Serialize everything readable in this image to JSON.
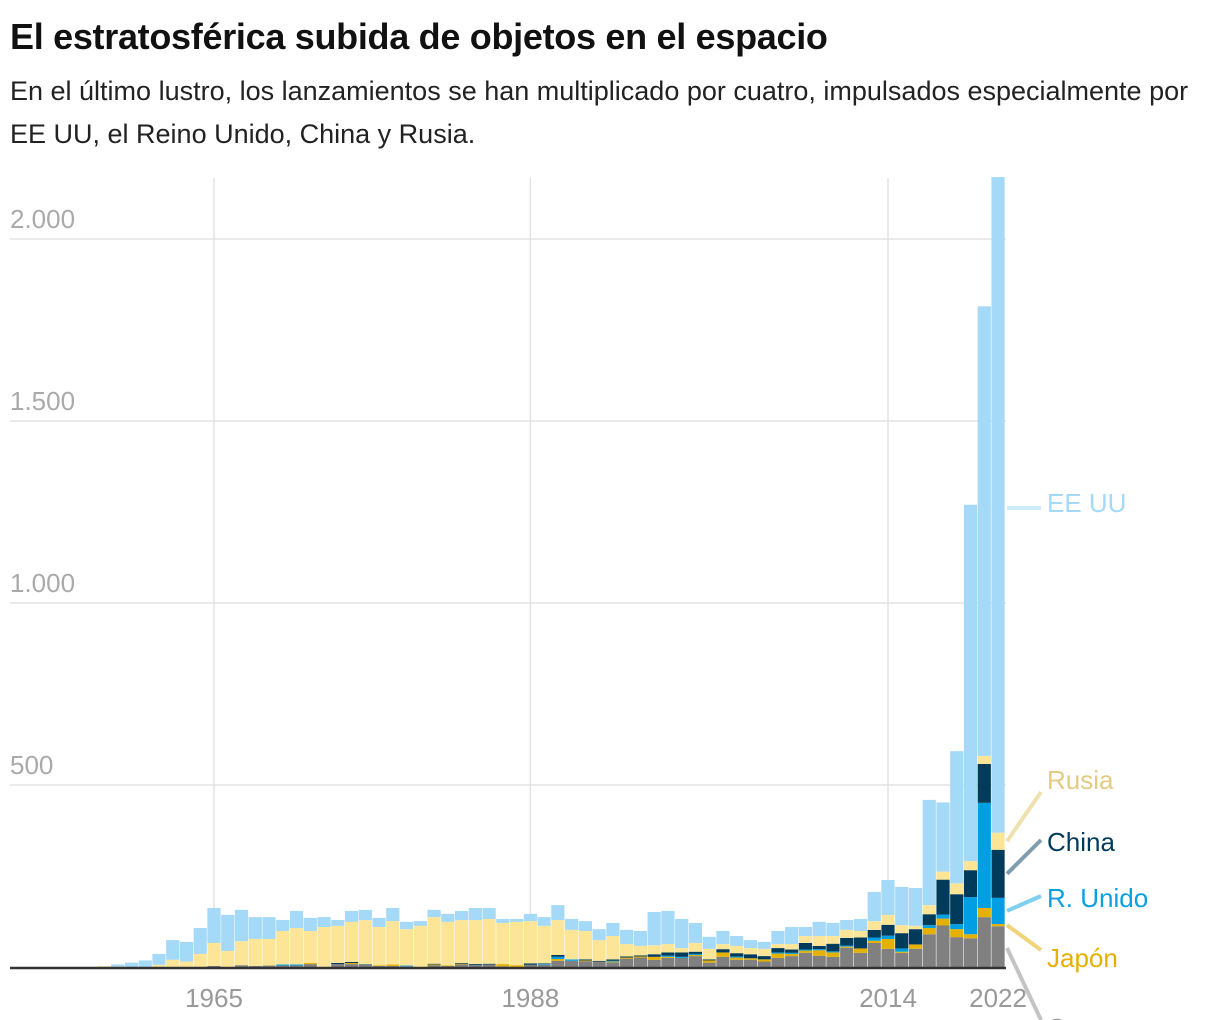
{
  "header": {
    "title": "El estratosférica subida de objetos en el espacio",
    "subtitle": "En el último lustro, los lanzamientos se han multiplicado por cuatro, impulsados especialmente por EE UU, el Reino Unido, China y Rusia."
  },
  "chart_data": {
    "type": "bar",
    "stacked": true,
    "title": "El estratosférica subida de objetos en el espacio",
    "subtitle": "En el último lustro, los lanzamientos se han multiplicado por cuatro, impulsados especialmente por EE UU, el Reino Unido, China y Rusia.",
    "xlabel": "",
    "ylabel": "",
    "ylim": [
      0,
      2170
    ],
    "xlim": [
      1957,
      2022
    ],
    "grid": true,
    "legend": "right-side labels",
    "x_ticks": [
      1965,
      1988,
      2014,
      2022
    ],
    "x_tick_labels": [
      "1965",
      "1988",
      "2014",
      "2022"
    ],
    "y_ticks": [
      500,
      1000,
      1500,
      2000
    ],
    "y_tick_labels": [
      "500",
      "1.000",
      "1.500",
      "2.000"
    ],
    "x": [
      1957,
      1958,
      1959,
      1960,
      1961,
      1962,
      1963,
      1964,
      1965,
      1966,
      1967,
      1968,
      1969,
      1970,
      1971,
      1972,
      1973,
      1974,
      1975,
      1976,
      1977,
      1978,
      1979,
      1980,
      1981,
      1982,
      1983,
      1984,
      1985,
      1986,
      1987,
      1988,
      1989,
      1990,
      1991,
      1992,
      1993,
      1994,
      1995,
      1996,
      1997,
      1998,
      1999,
      2000,
      2001,
      2002,
      2003,
      2004,
      2005,
      2006,
      2007,
      2008,
      2009,
      2010,
      2011,
      2012,
      2013,
      2014,
      2015,
      2016,
      2017,
      2018,
      2019,
      2020,
      2021,
      2022
    ],
    "series": [
      {
        "name": "Otros",
        "color": "#808080",
        "values": [
          0,
          0,
          0,
          0,
          0,
          0,
          0,
          0,
          3,
          0,
          5,
          3,
          4,
          4,
          4,
          8,
          0,
          8,
          8,
          5,
          3,
          3,
          2,
          0,
          5,
          3,
          7,
          5,
          7,
          2,
          0,
          6,
          6,
          17,
          17,
          16,
          15,
          13,
          23,
          26,
          20,
          25,
          25,
          30,
          12,
          28,
          20,
          20,
          15,
          25,
          30,
          39,
          31,
          28,
          53,
          39,
          66,
          50,
          39,
          50,
          90,
          114,
          82,
          79,
          137,
          112
        ]
      },
      {
        "name": "Japón",
        "color": "#e5b000",
        "values": [
          0,
          0,
          0,
          0,
          0,
          0,
          0,
          0,
          0,
          0,
          0,
          0,
          0,
          0,
          0,
          3,
          0,
          0,
          3,
          0,
          2,
          4,
          0,
          0,
          2,
          2,
          2,
          0,
          0,
          6,
          5,
          0,
          0,
          5,
          0,
          2,
          0,
          2,
          3,
          3,
          8,
          3,
          0,
          3,
          6,
          12,
          6,
          4,
          6,
          12,
          6,
          6,
          15,
          12,
          3,
          12,
          6,
          27,
          3,
          12,
          17,
          19,
          22,
          11,
          25,
          6
        ]
      },
      {
        "name": "R. Unido",
        "color": "#009fe3",
        "values": [
          0,
          0,
          0,
          0,
          0,
          0,
          0,
          0,
          0,
          0,
          0,
          0,
          0,
          3,
          3,
          0,
          0,
          0,
          0,
          0,
          0,
          0,
          2,
          0,
          0,
          0,
          0,
          0,
          0,
          0,
          0,
          0,
          2,
          6,
          4,
          0,
          0,
          2,
          0,
          0,
          0,
          3,
          3,
          3,
          0,
          0,
          3,
          0,
          0,
          3,
          3,
          3,
          3,
          3,
          3,
          0,
          9,
          9,
          9,
          0,
          8,
          11,
          14,
          102,
          289,
          72
        ]
      },
      {
        "name": "China",
        "color": "#003b5c",
        "values": [
          0,
          0,
          0,
          0,
          0,
          0,
          0,
          0,
          0,
          0,
          0,
          0,
          0,
          0,
          0,
          0,
          0,
          3,
          3,
          2,
          0,
          0,
          0,
          0,
          2,
          0,
          2,
          3,
          2,
          0,
          0,
          4,
          2,
          5,
          0,
          3,
          2,
          4,
          3,
          3,
          7,
          9,
          12,
          6,
          3,
          9,
          9,
          11,
          9,
          12,
          9,
          18,
          9,
          21,
          21,
          30,
          21,
          30,
          42,
          42,
          30,
          96,
          82,
          74,
          107,
          132
        ]
      },
      {
        "name": "Rusia",
        "color": "#fde597",
        "values": [
          2,
          1,
          0,
          0,
          6,
          20,
          15,
          36,
          63,
          44,
          66,
          74,
          73,
          92,
          100,
          88,
          110,
          102,
          110,
          122,
          105,
          119,
          100,
          113,
          128,
          119,
          118,
          121,
          123,
          113,
          119,
          116,
          103,
          96,
          81,
          78,
          57,
          64,
          34,
          26,
          25,
          23,
          12,
          24,
          29,
          14,
          20,
          17,
          20,
          11,
          15,
          19,
          27,
          21,
          22,
          18,
          24,
          27,
          22,
          9,
          25,
          22,
          30,
          25,
          22,
          47
        ]
      },
      {
        "name": "EE UU",
        "color": "#a4d9f7",
        "values": [
          0,
          6,
          12,
          18,
          30,
          54,
          54,
          71,
          96,
          99,
          86,
          60,
          60,
          30,
          47,
          36,
          27,
          16,
          30,
          28,
          25,
          36,
          20,
          13,
          20,
          22,
          25,
          33,
          30,
          11,
          8,
          20,
          24,
          41,
          30,
          27,
          30,
          36,
          39,
          41,
          91,
          91,
          80,
          55,
          33,
          36,
          27,
          22,
          19,
          36,
          47,
          25,
          39,
          36,
          27,
          33,
          80,
          96,
          105,
          104,
          289,
          190,
          363,
          979,
          1235,
          1801
        ]
      }
    ]
  }
}
